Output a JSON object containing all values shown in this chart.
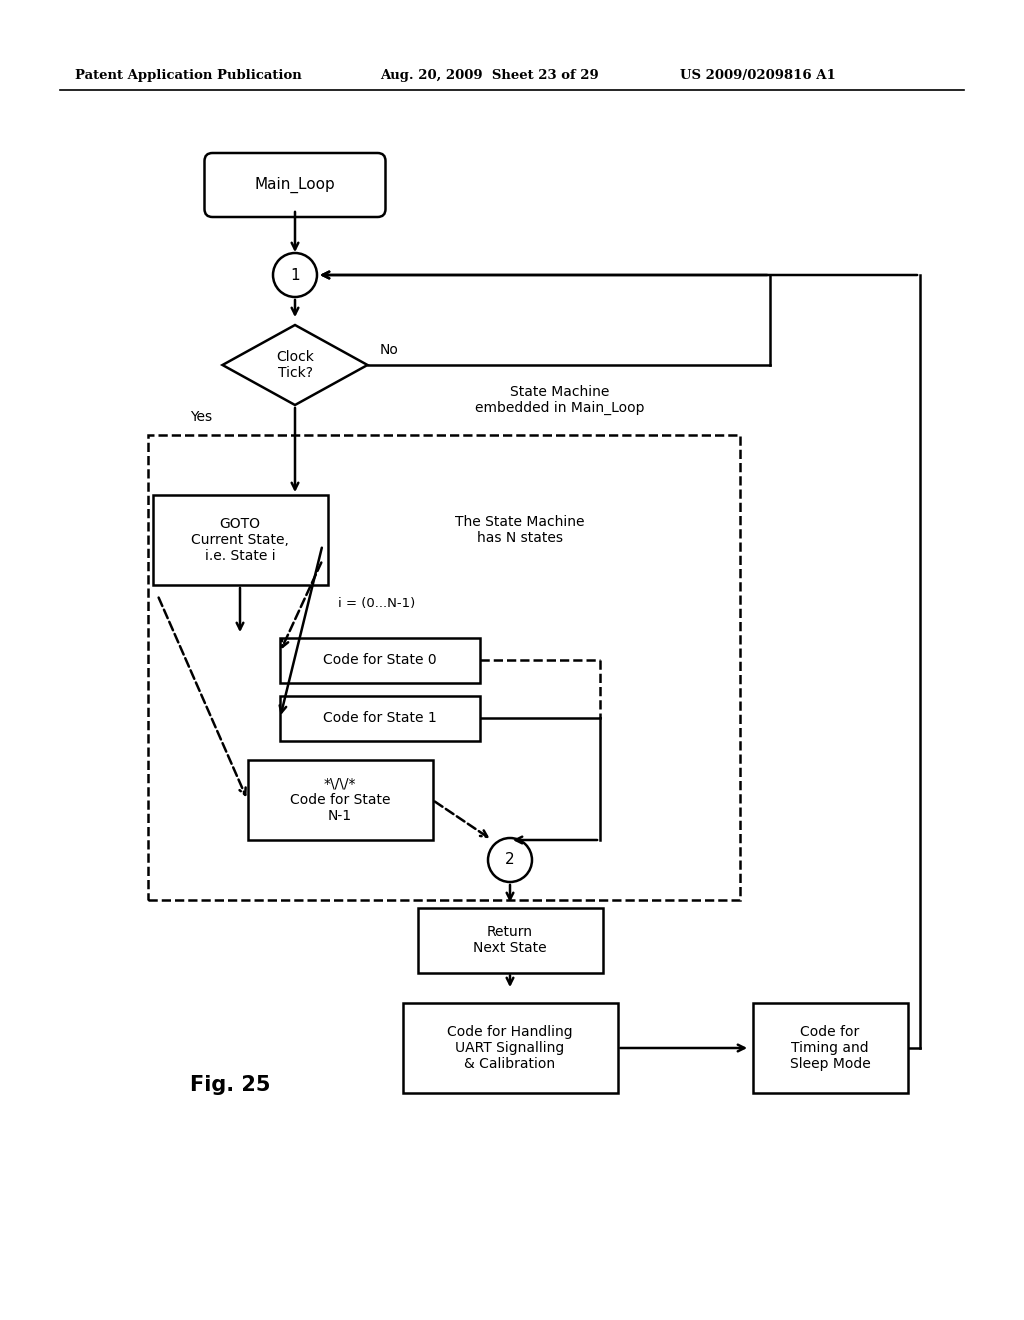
{
  "bg_color": "#ffffff",
  "header_left": "Patent Application Publication",
  "header_mid": "Aug. 20, 2009  Sheet 23 of 29",
  "header_right": "US 2009/0209816 A1",
  "fig_label": "Fig. 25",
  "state_machine_label": "State Machine\nembedded in Main_Loop",
  "has_n_states_label": "The State Machine\nhas N states",
  "i_label": "i = (0...N-1)",
  "no_label": "No",
  "yes_label": "Yes"
}
